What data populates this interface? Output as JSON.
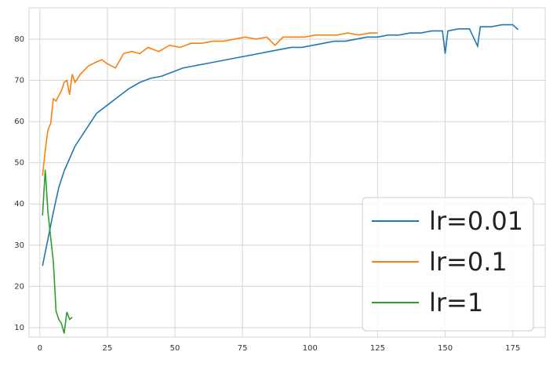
{
  "chart_data": {
    "type": "line",
    "grid": true,
    "legend": "lower right",
    "xlim": [
      -4,
      187
    ],
    "ylim": [
      7.7,
      87.6
    ],
    "xticks": [
      0,
      25,
      50,
      75,
      100,
      125,
      150,
      175
    ],
    "yticks": [
      10,
      20,
      30,
      40,
      50,
      60,
      70,
      80
    ],
    "series": [
      {
        "name": "lr=0.01",
        "color": "#1f77b4",
        "x": [
          1,
          5,
          7,
          9,
          13,
          17,
          21,
          25,
          29,
          33,
          37,
          41,
          45,
          49,
          53,
          57,
          61,
          65,
          69,
          73,
          77,
          81,
          85,
          89,
          93,
          97,
          101,
          105,
          109,
          113,
          117,
          121,
          125,
          129,
          133,
          137,
          141,
          145,
          149,
          150,
          151,
          155,
          159,
          162,
          163,
          167,
          171,
          175,
          177
        ],
        "values": [
          25,
          38,
          44,
          48,
          54,
          58,
          62,
          64,
          66,
          68,
          69.5,
          70.5,
          71,
          72,
          73,
          73.5,
          74,
          74.5,
          75,
          75.5,
          76,
          76.5,
          77,
          77.5,
          78,
          78,
          78.5,
          79,
          79.5,
          79.5,
          80,
          80.5,
          80.5,
          81,
          81,
          81.5,
          81.5,
          82,
          82,
          76.5,
          82,
          82.5,
          82.5,
          78.3,
          83,
          83,
          83.5,
          83.5,
          82.3
        ]
      },
      {
        "name": "lr=0.1",
        "color": "#ff7f0e",
        "x": [
          1,
          2,
          3,
          4,
          5,
          6,
          8,
          9,
          10,
          11,
          12,
          13,
          15,
          18,
          21,
          23,
          25,
          28,
          31,
          34,
          37,
          40,
          44,
          48,
          52,
          56,
          60,
          64,
          68,
          72,
          76,
          80,
          84,
          87,
          90,
          94,
          98,
          102,
          106,
          110,
          114,
          118,
          122,
          125
        ],
        "values": [
          46.8,
          53,
          58,
          59.5,
          65.5,
          65,
          67.5,
          69.5,
          70,
          66.5,
          71.5,
          69.5,
          71.5,
          73.5,
          74.5,
          75,
          74,
          73,
          76.5,
          77,
          76.5,
          78,
          77,
          78.5,
          78,
          79,
          79,
          79.5,
          79.5,
          80,
          80.5,
          80,
          80.5,
          78.5,
          80.5,
          80.5,
          80.5,
          81,
          81,
          81,
          81.5,
          81,
          81.5,
          81.5
        ]
      },
      {
        "name": "lr=1",
        "color": "#2ca02c",
        "x": [
          1,
          2,
          3,
          4,
          5,
          6,
          7,
          8,
          9,
          10,
          11,
          12
        ],
        "values": [
          37.2,
          48.3,
          38,
          32,
          26,
          14,
          12,
          11,
          8.6,
          13.8,
          12,
          12.5
        ]
      }
    ]
  }
}
